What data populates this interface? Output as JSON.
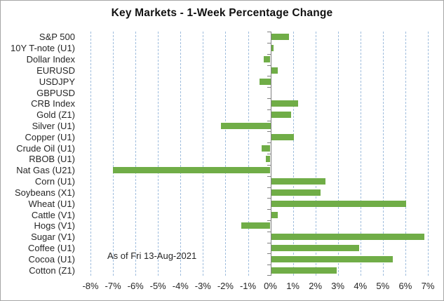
{
  "title": "Key Markets - 1-Week Percentage Change",
  "annotation": "As of Fri 13-Aug-2021",
  "colors": {
    "bar": "#70ad47",
    "gridline": "#9fbddd",
    "axis": "#808080",
    "text": "#262626",
    "border": "#a6a6a6"
  },
  "chart_data": {
    "type": "bar",
    "orientation": "horizontal",
    "title": "Key Markets - 1-Week Percentage Change",
    "annotation": "As of Fri 13-Aug-2021",
    "categories": [
      "S&P 500",
      "10Y T-note (U1)",
      "Dollar Index",
      "EURUSD",
      "USDJPY",
      "GBPUSD",
      "CRB Index",
      "Gold (Z1)",
      "Silver (U1)",
      "Copper (U1)",
      "Crude Oil (U1)",
      "RBOB (U1)",
      "Nat Gas (U21)",
      "Corn (U1)",
      "Soybeans (X1)",
      "Wheat (U1)",
      "Cattle (V1)",
      "Hogs (V1)",
      "Sugar (V1)",
      "Coffee (U1)",
      "Cocoa (U1)",
      "Cotton (Z1)"
    ],
    "values": [
      0.8,
      0.1,
      -0.3,
      0.3,
      -0.5,
      0.0,
      1.2,
      0.9,
      -2.2,
      1.0,
      -0.4,
      -0.2,
      -7.0,
      2.4,
      2.2,
      6.0,
      0.3,
      -1.3,
      6.8,
      3.9,
      5.4,
      2.9
    ],
    "xlabel": "",
    "ylabel": "",
    "xlim": [
      -8.5,
      7.5
    ],
    "xtick_values": [
      -8,
      -7,
      -6,
      -5,
      -4,
      -3,
      -2,
      -1,
      0,
      1,
      2,
      3,
      4,
      5,
      6,
      7
    ],
    "xtick_labels": [
      "-8%",
      "-7%",
      "-6%",
      "-5%",
      "-4%",
      "-3%",
      "-2%",
      "-1%",
      "0%",
      "1%",
      "2%",
      "3%",
      "4%",
      "5%",
      "6%",
      "7%"
    ],
    "grid": "vertical-dashed-1pct",
    "legend": "none"
  }
}
